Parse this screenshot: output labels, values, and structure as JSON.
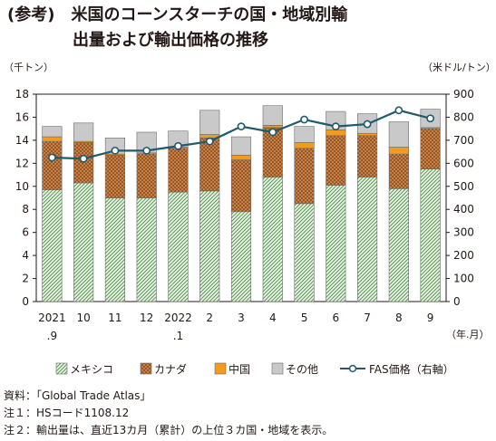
{
  "title": {
    "line1": "(参考)　米国のコーンスターチの国・地域別輸",
    "line2": "　　　　出量および輸出価格の推移"
  },
  "notes": [
    "資料：「Global Trade Atlas」",
    "注１：HSコード1108.12",
    "注２：輸出量は、直近13カ月（累計）の上位３カ国・地域を表示。"
  ],
  "chart_data": {
    "type": "bar",
    "stacked": true,
    "left_unit": "（千トン）",
    "right_unit": "（米ドル/トン）",
    "x_unit": "（年.月）",
    "ylim": [
      0,
      18
    ],
    "y_ticks": [
      0,
      2,
      4,
      6,
      8,
      10,
      12,
      14,
      16,
      18
    ],
    "y2lim": [
      0,
      900
    ],
    "y2_ticks": [
      0,
      100,
      200,
      300,
      400,
      500,
      600,
      700,
      800,
      900
    ],
    "categories": [
      "2021\n.9",
      "10",
      "11",
      "12",
      "2022\n.1",
      "2",
      "3",
      "4",
      "5",
      "6",
      "7",
      "8",
      "9"
    ],
    "series": [
      {
        "name": "メキシコ",
        "color": "#7fb07a",
        "pattern": "diagonal-hatch",
        "values": [
          9.7,
          10.3,
          9.0,
          9.0,
          9.5,
          9.6,
          7.8,
          10.8,
          8.5,
          10.1,
          10.8,
          9.8,
          11.5
        ]
      },
      {
        "name": "カナダ",
        "color": "#a0561f",
        "pattern": "dots",
        "values": [
          4.2,
          3.5,
          3.7,
          3.8,
          3.8,
          4.6,
          4.5,
          4.3,
          4.8,
          4.3,
          3.6,
          3.0,
          3.5
        ]
      },
      {
        "name": "中国",
        "color": "#f39a1f",
        "values": [
          0.4,
          0.1,
          0.1,
          0.1,
          0.1,
          0.3,
          0.4,
          0.2,
          0.5,
          0.5,
          0.2,
          0.6,
          0.1
        ]
      },
      {
        "name": "その他",
        "color": "#c9c9c9",
        "values": [
          0.9,
          1.6,
          1.4,
          1.8,
          1.4,
          2.1,
          1.6,
          1.7,
          1.4,
          1.6,
          1.7,
          2.2,
          1.6
        ]
      }
    ],
    "line_series": {
      "name": "FAS価格（右軸）",
      "color": "#1f5a6e",
      "values": [
        625,
        620,
        655,
        655,
        675,
        695,
        760,
        735,
        790,
        760,
        770,
        830,
        795
      ]
    }
  }
}
